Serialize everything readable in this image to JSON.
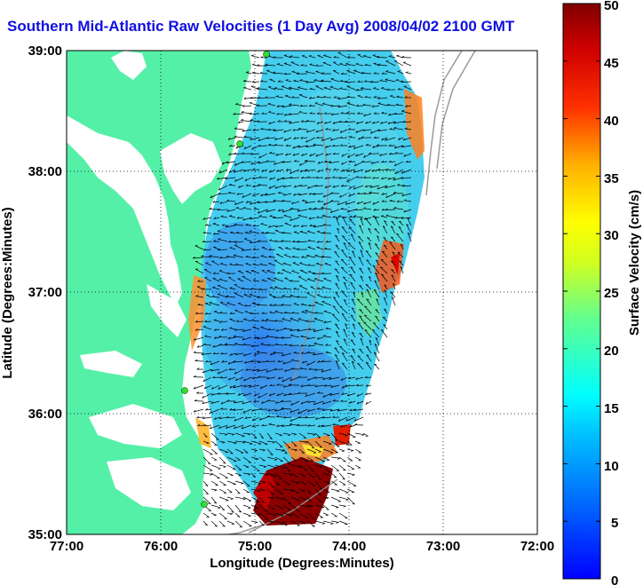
{
  "title": "Southern Mid-Atlantic Raw Velocities (1 Day Avg) 2008/04/02 2100 GMT",
  "map": {
    "xlabel": "Longitude (Degrees:Minutes)",
    "ylabel": "Latitude (Degrees:Minutes)",
    "xticks": [
      "77:00",
      "76:00",
      "75:00",
      "74:00",
      "73:00",
      "72:00"
    ],
    "yticks": [
      "39:00",
      "38:00",
      "37:00",
      "36:00",
      "35:00"
    ],
    "land_color": "#55f0a8",
    "grid": "dotted"
  },
  "colorbar": {
    "label": "Surface Velocity (cm/s)",
    "ticks": [
      "50",
      "45",
      "40",
      "35",
      "30",
      "25",
      "20",
      "15",
      "10",
      "5",
      "0"
    ],
    "min": 0,
    "max": 50,
    "colormap": "jet"
  }
}
